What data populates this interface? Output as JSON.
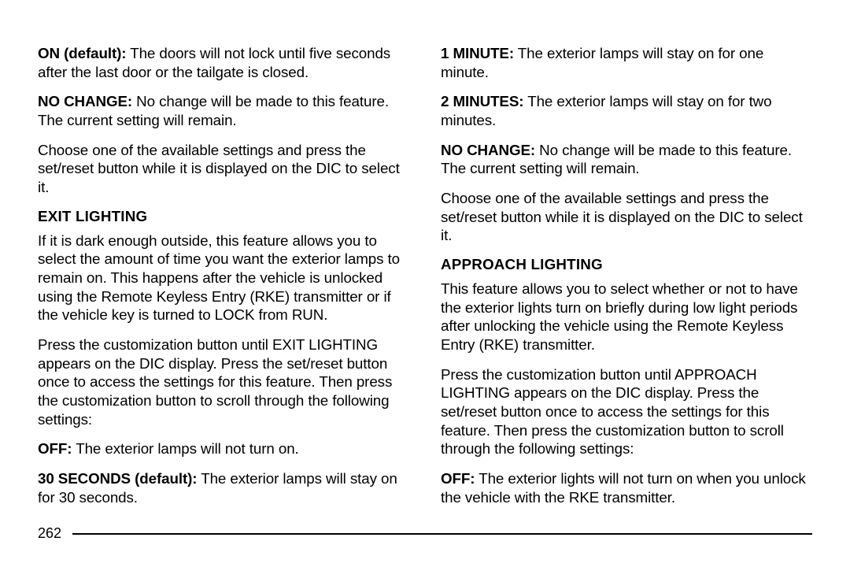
{
  "page_number": "262",
  "left": {
    "p1": {
      "lead": "ON (default):",
      "rest": " The doors will not lock until five seconds after the last door or the tailgate is closed."
    },
    "p2": {
      "lead": "NO CHANGE:",
      "rest": " No change will be made to this feature. The current setting will remain."
    },
    "p3": "Choose one of the available settings and press the set/reset button while it is displayed on the DIC to select it.",
    "h1": "EXIT LIGHTING",
    "p4": "If it is dark enough outside, this feature allows you to select the amount of time you want the exterior lamps to remain on. This happens after the vehicle is unlocked using the Remote Keyless Entry (RKE) transmitter or if the vehicle key is turned to LOCK from RUN.",
    "p5": "Press the customization button until EXIT LIGHTING appears on the DIC display. Press the set/reset button once to access the settings for this feature. Then press the customization button to scroll through the following settings:",
    "p6": {
      "lead": "OFF:",
      "rest": " The exterior lamps will not turn on."
    },
    "p7": {
      "lead": "30 SECONDS (default):",
      "rest": " The exterior lamps will stay on for 30 seconds."
    }
  },
  "right": {
    "p1": {
      "lead": "1 MINUTE:",
      "rest": " The exterior lamps will stay on for one minute."
    },
    "p2": {
      "lead": "2 MINUTES:",
      "rest": " The exterior lamps will stay on for two minutes."
    },
    "p3": {
      "lead": "NO CHANGE:",
      "rest": " No change will be made to this feature. The current setting will remain."
    },
    "p4": "Choose one of the available settings and press the set/reset button while it is displayed on the DIC to select it.",
    "h1": "APPROACH LIGHTING",
    "p5": "This feature allows you to select whether or not to have the exterior lights turn on briefly during low light periods after unlocking the vehicle using the Remote Keyless Entry (RKE) transmitter.",
    "p6": "Press the customization button until APPROACH LIGHTING appears on the DIC display. Press the set/reset button once to access the settings for this feature. Then press the customization button to scroll through the following settings:",
    "p7": {
      "lead": "OFF:",
      "rest": " The exterior lights will not turn on when you unlock the vehicle with the RKE transmitter."
    }
  }
}
